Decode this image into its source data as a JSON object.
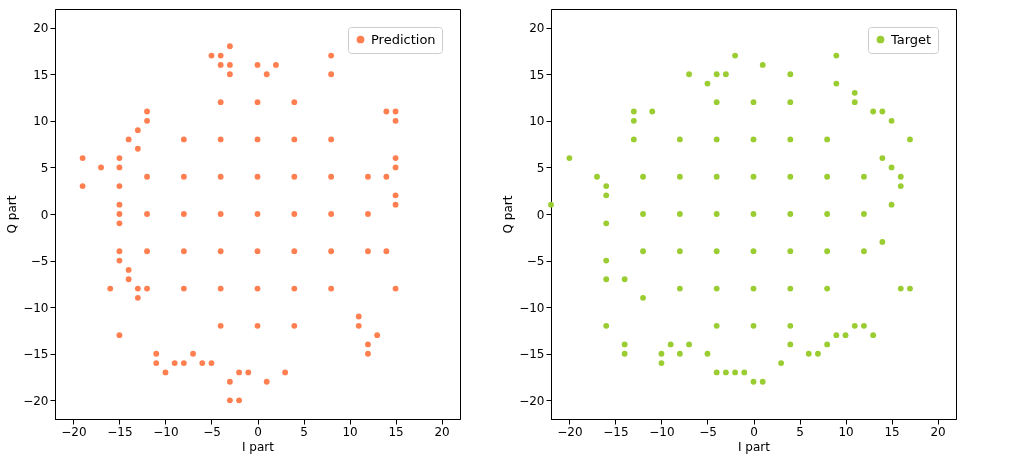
{
  "chart_data": [
    {
      "type": "scatter",
      "xlabel": "I part",
      "ylabel": "Q part",
      "xlim": [
        -22,
        22
      ],
      "ylim": [
        -22,
        22
      ],
      "xticks": [
        -20,
        -15,
        -10,
        -5,
        0,
        5,
        10,
        15,
        20
      ],
      "yticks": [
        -20,
        -15,
        -10,
        -5,
        0,
        5,
        10,
        15,
        20
      ],
      "grid": false,
      "legend": "top right",
      "marker": "circle",
      "series": [
        {
          "name": "Prediction",
          "color": "#ff7f50",
          "x": [
            -19,
            -19,
            -17,
            -16,
            -15,
            -11,
            -11,
            -10,
            -9,
            -3,
            -5,
            -4,
            -4,
            0,
            2,
            8,
            8,
            -3,
            -3,
            1,
            15,
            15,
            14,
            15,
            15,
            15,
            15,
            14,
            14,
            15,
            12,
            12,
            13,
            11,
            11,
            -3,
            -2,
            -3,
            -2,
            -1,
            1,
            3,
            -6,
            -5,
            -7,
            -8,
            -15,
            -15,
            -15,
            -15,
            -15,
            -15,
            -15,
            -15,
            -14,
            -13,
            -13,
            -12,
            -14,
            -14,
            -13,
            -12,
            -12,
            -13,
            -12,
            -12,
            -12,
            -8,
            -8,
            -8,
            -8,
            -8,
            -4,
            -4,
            -4,
            -4,
            -4,
            -4,
            -4,
            0,
            0,
            0,
            0,
            0,
            0,
            0,
            4,
            4,
            4,
            4,
            4,
            4,
            4,
            8,
            8,
            8,
            8,
            8,
            12,
            12,
            12
          ],
          "values": [
            6,
            3,
            5,
            -8,
            -13,
            -15,
            -16,
            -17,
            -16,
            18,
            17,
            17,
            16,
            16,
            16,
            17,
            15,
            16,
            15,
            15,
            11,
            10,
            11,
            6,
            5,
            2,
            1,
            4,
            -4,
            -8,
            -15,
            -14,
            -13,
            -12,
            -11,
            -20,
            -20,
            -18,
            -17,
            -17,
            -18,
            -17,
            -16,
            -16,
            -15,
            -16,
            6,
            5,
            3,
            1,
            0,
            -1,
            -4,
            -5,
            -7,
            -9,
            -8,
            -8,
            -6,
            8,
            9,
            11,
            10,
            7,
            -4,
            0,
            4,
            -8,
            -4,
            0,
            4,
            8,
            -12,
            -8,
            -4,
            0,
            4,
            8,
            12,
            -12,
            -8,
            -4,
            0,
            4,
            8,
            12,
            -12,
            -8,
            -4,
            0,
            4,
            8,
            12,
            -8,
            -4,
            0,
            4,
            8,
            -4,
            0,
            4
          ]
        }
      ]
    },
    {
      "type": "scatter",
      "xlabel": "I part",
      "ylabel": "Q part",
      "xlim": [
        -22,
        22
      ],
      "ylim": [
        -22,
        22
      ],
      "xticks": [
        -20,
        -15,
        -10,
        -5,
        0,
        5,
        10,
        15,
        20
      ],
      "yticks": [
        -20,
        -15,
        -10,
        -5,
        0,
        5,
        10,
        15,
        20
      ],
      "grid": false,
      "legend": "top right",
      "marker": "circle",
      "series": [
        {
          "name": "Target",
          "color": "#9acd32",
          "x": [
            -22,
            -20,
            -17,
            -16,
            -16,
            -16,
            -16,
            -16,
            -16,
            -14,
            -14,
            -14,
            -10,
            -10,
            -12,
            -13,
            -13,
            -13,
            -11,
            -2,
            1,
            9,
            -7,
            -3,
            -4,
            -5,
            4,
            9,
            11,
            11,
            13,
            14,
            15,
            17,
            16,
            16,
            15,
            14,
            15,
            14,
            16,
            17,
            13,
            12,
            11,
            10,
            7,
            6,
            3,
            -4,
            -3,
            -2,
            -1,
            0,
            1,
            -8,
            -9,
            -7,
            -5,
            4,
            8,
            9,
            -12,
            -12,
            -12,
            -8,
            -8,
            -8,
            -8,
            -8,
            -4,
            -4,
            -4,
            -4,
            -4,
            -4,
            -4,
            0,
            0,
            0,
            0,
            0,
            0,
            0,
            4,
            4,
            4,
            4,
            4,
            4,
            4,
            8,
            8,
            8,
            8,
            8,
            12,
            12,
            12
          ],
          "values": [
            1,
            6,
            4,
            3,
            2,
            -1,
            -5,
            -7,
            -12,
            -7,
            -14,
            -15,
            -15,
            -16,
            -9,
            8,
            10,
            11,
            11,
            17,
            16,
            17,
            15,
            15,
            15,
            14,
            15,
            14,
            12,
            13,
            11,
            11,
            10,
            8,
            3,
            4,
            5,
            6,
            1,
            -3,
            -8,
            -8,
            -13,
            -12,
            -12,
            -13,
            -15,
            -15,
            -16,
            -17,
            -17,
            -17,
            -17,
            -18,
            -18,
            -15,
            -14,
            -14,
            -15,
            -14,
            -14,
            -13,
            -4,
            0,
            4,
            -8,
            -4,
            0,
            4,
            8,
            -12,
            -8,
            -4,
            0,
            4,
            8,
            12,
            -12,
            -8,
            -4,
            0,
            4,
            8,
            12,
            -12,
            -8,
            -4,
            0,
            4,
            8,
            12,
            -8,
            -4,
            0,
            4,
            8,
            -4,
            0,
            4
          ]
        }
      ]
    }
  ]
}
